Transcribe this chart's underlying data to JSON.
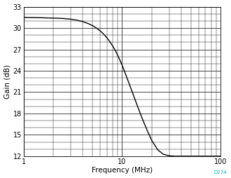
{
  "title": "",
  "xlabel": "Frequency (MHz)",
  "ylabel": "Gain (dB)",
  "xlim": [
    1,
    100
  ],
  "ylim": [
    12,
    33
  ],
  "yticks": [
    12,
    15,
    18,
    21,
    24,
    27,
    30,
    33
  ],
  "background_color": "#ffffff",
  "line_color": "#000000",
  "grid_color": "#000000",
  "annotation": "D274",
  "annotation_color": "#00aacc",
  "curve_freq": [
    1.0,
    1.5,
    2.0,
    2.5,
    3.0,
    3.5,
    4.0,
    4.5,
    5.0,
    5.5,
    6.0,
    6.5,
    7.0,
    7.5,
    8.0,
    8.5,
    9.0,
    9.5,
    10.0,
    11.0,
    12.0,
    13.0,
    14.0,
    15.0,
    16.0,
    18.0,
    20.0,
    23.0,
    26.0,
    30.0,
    35.0,
    40.0,
    45.0,
    50.0,
    55.0,
    60.0,
    65.0,
    70.0,
    75.0,
    80.0,
    90.0,
    100.0
  ],
  "curve_gain": [
    31.5,
    31.45,
    31.4,
    31.35,
    31.25,
    31.1,
    30.9,
    30.65,
    30.35,
    30.0,
    29.6,
    29.15,
    28.65,
    28.1,
    27.5,
    26.9,
    26.2,
    25.5,
    24.8,
    23.3,
    21.9,
    20.6,
    19.4,
    18.3,
    17.3,
    15.6,
    14.2,
    12.9,
    12.3,
    12.05,
    12.0,
    12.0,
    12.0,
    12.0,
    12.0,
    12.0,
    12.0,
    12.0,
    12.0,
    12.0,
    12.0,
    12.0
  ]
}
